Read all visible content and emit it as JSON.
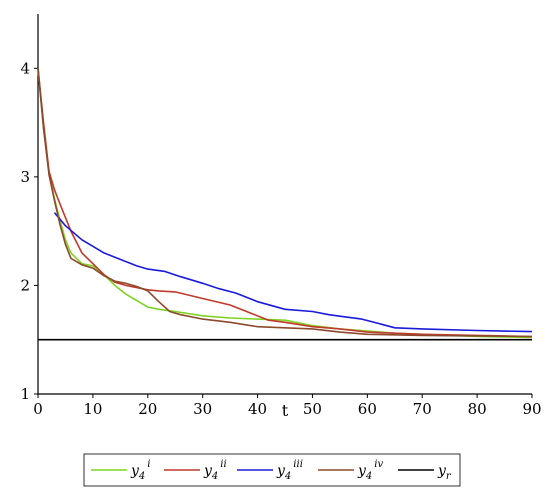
{
  "chart_data": {
    "type": "line",
    "title": "",
    "xlabel": "t",
    "ylabel": "",
    "xlim": [
      0,
      90
    ],
    "ylim": [
      1,
      4.5
    ],
    "xticks": [
      0,
      10,
      20,
      30,
      40,
      50,
      60,
      70,
      80,
      90
    ],
    "yticks": [
      1,
      2,
      3,
      4
    ],
    "grid": false,
    "legend_position": "bottom",
    "series": [
      {
        "name_base": "y",
        "name_sub": "4",
        "name_sup": "i",
        "color": "#7ed321",
        "x": [
          0,
          1,
          2,
          3,
          4,
          5,
          6,
          8,
          10,
          12,
          14,
          16,
          18,
          20,
          22,
          25,
          30,
          35,
          40,
          45,
          50,
          55,
          60,
          65,
          70,
          80,
          90
        ],
        "y": [
          4.0,
          3.45,
          3.05,
          2.8,
          2.6,
          2.42,
          2.3,
          2.2,
          2.18,
          2.1,
          2.0,
          1.92,
          1.86,
          1.8,
          1.78,
          1.76,
          1.72,
          1.7,
          1.69,
          1.68,
          1.63,
          1.6,
          1.58,
          1.56,
          1.55,
          1.53,
          1.52
        ]
      },
      {
        "name_base": "y",
        "name_sub": "4",
        "name_sup": "ii",
        "color": "#c0392b",
        "x": [
          0,
          1,
          2,
          3,
          4,
          6,
          8,
          10,
          12,
          14,
          16,
          18,
          20,
          22,
          25,
          30,
          35,
          38,
          42,
          45,
          50,
          55,
          60,
          65,
          70,
          80,
          90
        ],
        "y": [
          4.0,
          3.5,
          3.05,
          2.88,
          2.75,
          2.5,
          2.3,
          2.2,
          2.1,
          2.03,
          2.0,
          1.98,
          1.96,
          1.95,
          1.94,
          1.88,
          1.82,
          1.76,
          1.68,
          1.66,
          1.62,
          1.6,
          1.57,
          1.56,
          1.55,
          1.54,
          1.53
        ]
      },
      {
        "name_base": "y",
        "name_sub": "4",
        "name_sup": "iii",
        "color": "#1a1adc",
        "x": [
          3,
          5,
          8,
          10,
          12,
          15,
          18,
          20,
          23,
          26,
          30,
          33,
          36,
          40,
          45,
          50,
          53,
          56,
          59,
          62,
          65,
          70,
          80,
          90
        ],
        "y": [
          2.67,
          2.55,
          2.42,
          2.36,
          2.3,
          2.24,
          2.18,
          2.15,
          2.13,
          2.08,
          2.02,
          1.97,
          1.93,
          1.85,
          1.78,
          1.76,
          1.73,
          1.71,
          1.69,
          1.65,
          1.61,
          1.6,
          1.585,
          1.575
        ]
      },
      {
        "name_base": "y",
        "name_sub": "4",
        "name_sup": "iv",
        "color": "#8b4a2b",
        "x": [
          0,
          1,
          2,
          3,
          4,
          5,
          6,
          8,
          10,
          12,
          14,
          16,
          18,
          20,
          22,
          24,
          26,
          30,
          35,
          40,
          45,
          50,
          55,
          60,
          70,
          80,
          90
        ],
        "y": [
          4.0,
          3.45,
          3.02,
          2.78,
          2.56,
          2.38,
          2.25,
          2.19,
          2.16,
          2.09,
          2.04,
          2.02,
          1.99,
          1.95,
          1.85,
          1.76,
          1.73,
          1.69,
          1.66,
          1.62,
          1.61,
          1.6,
          1.57,
          1.55,
          1.54,
          1.535,
          1.53
        ]
      },
      {
        "name_base": "y",
        "name_sub": "r",
        "name_sup": "",
        "color": "#000000",
        "x": [
          0,
          90
        ],
        "y": [
          1.5,
          1.5
        ]
      }
    ]
  }
}
